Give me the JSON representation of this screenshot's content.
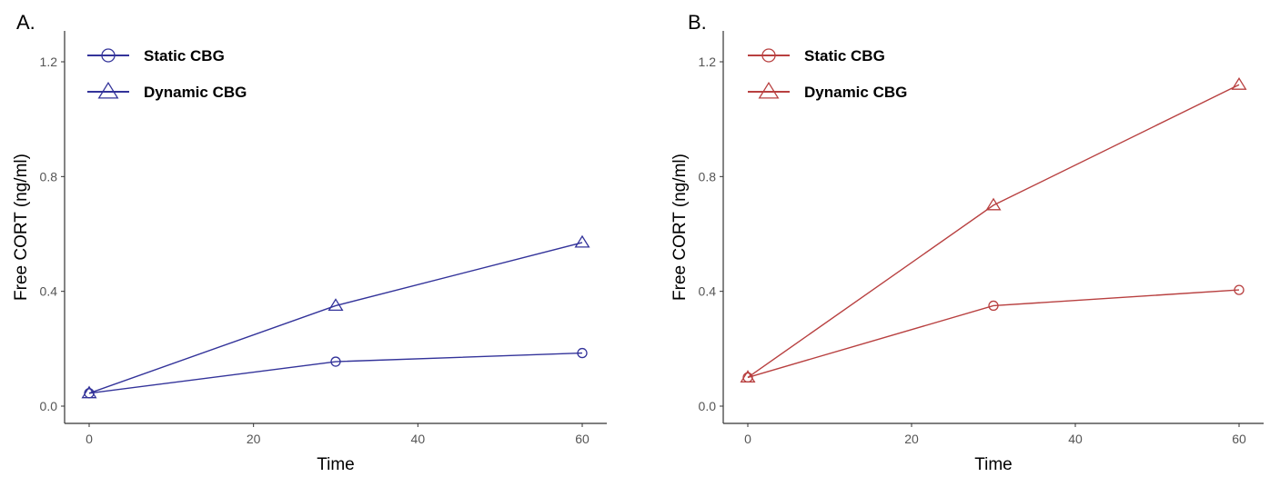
{
  "chart_data": [
    {
      "type": "line",
      "panel_label": "A.",
      "xlabel": "Time",
      "ylabel": "Free CORT (ng/ml)",
      "xlim": [
        0,
        60
      ],
      "ylim": [
        0,
        1.2
      ],
      "x_ticks": [
        0,
        20,
        40,
        60
      ],
      "y_ticks": [
        0.0,
        0.4,
        0.8,
        1.2
      ],
      "y_tick_labels": [
        "0.0",
        "0.4",
        "0.8",
        "1.2"
      ],
      "legend_position": "top-left",
      "grid": false,
      "color": "#33339a",
      "x": [
        0,
        30,
        60
      ],
      "series": [
        {
          "name": "Static CBG",
          "marker": "circle",
          "values": [
            0.045,
            0.155,
            0.185
          ]
        },
        {
          "name": "Dynamic CBG",
          "marker": "triangle",
          "values": [
            0.045,
            0.35,
            0.57
          ]
        }
      ]
    },
    {
      "type": "line",
      "panel_label": "B.",
      "xlabel": "Time",
      "ylabel": "Free CORT (ng/ml)",
      "xlim": [
        0,
        60
      ],
      "ylim": [
        0,
        1.2
      ],
      "x_ticks": [
        0,
        20,
        40,
        60
      ],
      "y_ticks": [
        0.0,
        0.4,
        0.8,
        1.2
      ],
      "y_tick_labels": [
        "0.0",
        "0.4",
        "0.8",
        "1.2"
      ],
      "legend_position": "top-left",
      "grid": false,
      "color": "#b84040",
      "x": [
        0,
        30,
        60
      ],
      "series": [
        {
          "name": "Static CBG",
          "marker": "circle",
          "values": [
            0.1,
            0.35,
            0.405
          ]
        },
        {
          "name": "Dynamic CBG",
          "marker": "triangle",
          "values": [
            0.1,
            0.7,
            1.12
          ]
        }
      ]
    }
  ]
}
